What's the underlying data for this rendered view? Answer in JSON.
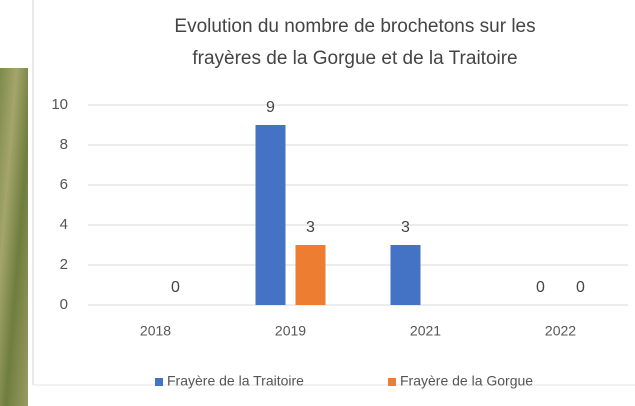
{
  "chart_data": {
    "type": "bar",
    "title": [
      "Evolution du nombre de brochetons sur les",
      "frayères de la Gorgue et de la Traitoire"
    ],
    "categories": [
      "2018",
      "2019",
      "2021",
      "2022"
    ],
    "series": [
      {
        "name": "Frayère de la Traitoire",
        "color": "#4472c4",
        "values": [
          null,
          9,
          3,
          0
        ]
      },
      {
        "name": "Frayère de la Gorgue",
        "color": "#ed7d31",
        "values": [
          0,
          3,
          null,
          0
        ]
      }
    ],
    "ylim": [
      0,
      10
    ],
    "yticks": [
      0,
      2,
      4,
      6,
      8,
      10
    ],
    "grid": true,
    "legend": "bottom"
  }
}
